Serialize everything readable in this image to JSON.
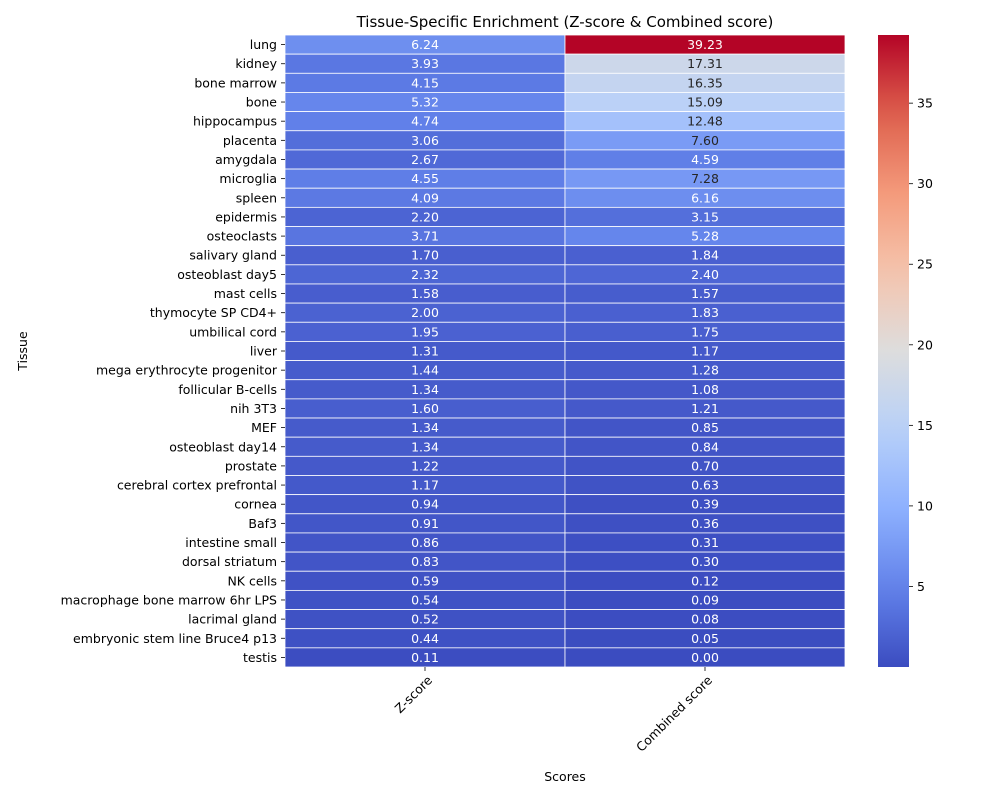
{
  "chart_data": {
    "type": "heatmap",
    "title": "Tissue-Specific Enrichment (Z-score & Combined score)",
    "xlabel": "Scores",
    "ylabel": "Tissue",
    "columns": [
      "Z-score",
      "Combined score"
    ],
    "rows": [
      "lung",
      "kidney",
      "bone marrow",
      "bone",
      "hippocampus",
      "placenta",
      "amygdala",
      "microglia",
      "spleen",
      "epidermis",
      "osteoclasts",
      "salivary gland",
      "osteoblast day5",
      "mast cells",
      "thymocyte SP CD4+",
      "umbilical cord",
      "liver",
      "mega erythrocyte progenitor",
      "follicular B-cells",
      "nih 3T3",
      "MEF",
      "osteoblast day14",
      "prostate",
      "cerebral cortex prefrontal",
      "cornea",
      "Baf3",
      "intestine small",
      "dorsal striatum",
      "NK cells",
      "macrophage bone marrow 6hr LPS",
      "lacrimal gland",
      "embryonic stem line Bruce4 p13",
      "testis"
    ],
    "values": [
      [
        6.24,
        39.23
      ],
      [
        3.93,
        17.31
      ],
      [
        4.15,
        16.35
      ],
      [
        5.32,
        15.09
      ],
      [
        4.74,
        12.48
      ],
      [
        3.06,
        7.6
      ],
      [
        2.67,
        4.59
      ],
      [
        4.55,
        7.28
      ],
      [
        4.09,
        6.16
      ],
      [
        2.2,
        3.15
      ],
      [
        3.71,
        5.28
      ],
      [
        1.7,
        1.84
      ],
      [
        2.32,
        2.4
      ],
      [
        1.58,
        1.57
      ],
      [
        2.0,
        1.83
      ],
      [
        1.95,
        1.75
      ],
      [
        1.31,
        1.17
      ],
      [
        1.44,
        1.28
      ],
      [
        1.34,
        1.08
      ],
      [
        1.6,
        1.21
      ],
      [
        1.34,
        0.85
      ],
      [
        1.34,
        0.84
      ],
      [
        1.22,
        0.7
      ],
      [
        1.17,
        0.63
      ],
      [
        0.94,
        0.39
      ],
      [
        0.91,
        0.36
      ],
      [
        0.86,
        0.31
      ],
      [
        0.83,
        0.3
      ],
      [
        0.59,
        0.12
      ],
      [
        0.54,
        0.09
      ],
      [
        0.52,
        0.08
      ],
      [
        0.44,
        0.05
      ],
      [
        0.11,
        0.0
      ]
    ],
    "color_scale": {
      "name": "coolwarm",
      "vmin": 0.0,
      "vmax": 39.23,
      "ticks": [
        5,
        10,
        15,
        20,
        25,
        30,
        35
      ]
    },
    "grid": false,
    "legend": "colorbar-right"
  }
}
